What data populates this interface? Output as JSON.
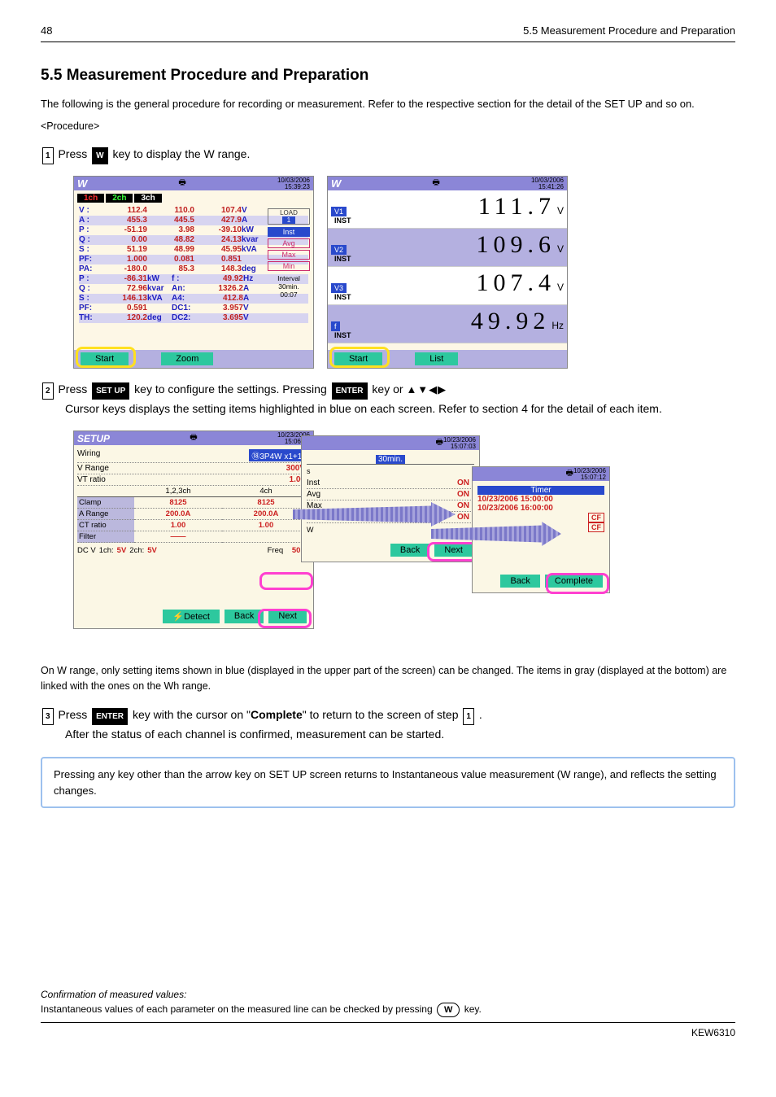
{
  "header": {
    "page": "48",
    "section": "5.5 Measurement Procedure and Preparation"
  },
  "sectionTitle": "5.5 Measurement Procedure and Preparation",
  "intro": "The following is the general procedure for recording or measurement. Refer to the respective section for the detail of the SET UP and so on.",
  "step1": {
    "num": "1",
    "pre": "Press",
    "key": "W",
    "post": "key to display the W range."
  },
  "screenshots": {
    "date1": "10/03/2006",
    "time1": "15:39:23",
    "date2": "10/03/2006",
    "time2": "15:41:26",
    "tabs": [
      "1ch",
      "2ch",
      "3ch"
    ],
    "rows": [
      {
        "lbl": "V :",
        "c1": "112.4",
        "c2": "110.0",
        "c3": "107.4",
        "un": "V"
      },
      {
        "lbl": "A :",
        "c1": "455.3",
        "c2": "445.5",
        "c3": "427.9",
        "un": "A"
      },
      {
        "lbl": "P :",
        "c1": "-51.19",
        "c2": "3.98",
        "c3": "-39.10",
        "un": "kW"
      },
      {
        "lbl": "Q :",
        "c1": "0.00",
        "c2": "48.82",
        "c3": "24.13",
        "un": "kvar"
      },
      {
        "lbl": "S :",
        "c1": "51.19",
        "c2": "48.99",
        "c3": "45.95",
        "un": "kVA"
      },
      {
        "lbl": "PF:",
        "c1": "1.000",
        "c2": "0.081",
        "c3": "0.851",
        "un": ""
      },
      {
        "lbl": "PA:",
        "c1": "-180.0",
        "c2": "85.3",
        "c3": "148.3",
        "un": "deg"
      }
    ],
    "sum": [
      {
        "a": "P :",
        "av": "-86.31",
        "au": "kW",
        "b": "f :",
        "bv": "49.92",
        "bu": "Hz"
      },
      {
        "a": "Q :",
        "av": "72.96",
        "au": "kvar",
        "b": "An:",
        "bv": "1326.2",
        "bu": "A"
      },
      {
        "a": "S :",
        "av": "146.13",
        "au": "kVA",
        "b": "A4:",
        "bv": "412.8",
        "bu": "A"
      },
      {
        "a": "PF:",
        "av": "0.591",
        "au": "",
        "b": "DC1:",
        "bv": "3.957",
        "bu": "V"
      },
      {
        "a": "TH:",
        "av": "120.2",
        "au": "deg",
        "b": "DC2:",
        "bv": "3.695",
        "bu": "V"
      }
    ],
    "loadTitle": "LOAD",
    "loadNum": "1",
    "rlabels": [
      "Inst",
      "Avg",
      "Max",
      "Min"
    ],
    "interval": "Interval",
    "intervalVal": "30min.",
    "counter": "00:07",
    "btnStart": "Start",
    "btnZoom": "Zoom",
    "btnList": "List",
    "zoomRows": [
      {
        "lbl": "V1",
        "sub": "INST",
        "val": "111.7",
        "unit": "V",
        "alt": false
      },
      {
        "lbl": "V2",
        "sub": "INST",
        "val": "109.6",
        "unit": "V",
        "alt": true
      },
      {
        "lbl": "V3",
        "sub": "INST",
        "val": "107.4",
        "unit": "V",
        "alt": false
      },
      {
        "lbl": "f",
        "sub": "INST",
        "val": "49.92",
        "unit": "Hz",
        "alt": true
      }
    ]
  },
  "step2": {
    "num": "2",
    "pre": "Press",
    "key": "SET UP",
    "mid": "key to configure the settings. Pressing",
    "key2": "ENTER",
    "post": "key or",
    "tail": "Cursor keys displays the setting items highlighted in blue on each screen. Refer to section 4 for the detail of each item."
  },
  "setup": {
    "title": "SETUP",
    "date": "10/23/2006",
    "time": "15:06:54",
    "date2": "10/23/2006",
    "time2": "15:07:03",
    "date3": "10/23/2006",
    "time3": "15:07:12",
    "wiring": {
      "lbl": "Wiring",
      "val": "⑱3P4W x1+1A"
    },
    "vrange": {
      "lbl": "V Range",
      "val": "300V"
    },
    "vtratio": {
      "lbl": "VT ratio",
      "val": "1.00"
    },
    "gridHead": [
      "",
      "1,2,3ch",
      "4ch"
    ],
    "gridRows": [
      {
        "l": "Clamp",
        "a": "8125",
        "b": "8125"
      },
      {
        "l": "A Range",
        "a": "200.0A",
        "b": "200.0A"
      },
      {
        "l": "CT ratio",
        "a": "1.00",
        "b": "1.00"
      },
      {
        "l": "Filter",
        "a": "——",
        "b": ""
      }
    ],
    "dcv": {
      "lbl": "DC V",
      "c1l": "1ch:",
      "c1v": "5V",
      "c2l": "2ch:",
      "c2v": "5V",
      "fl": "Freq",
      "fv": "50Hz"
    },
    "btnDetect": "⚡Detect",
    "btnBack": "Back",
    "btnNext": "Next",
    "btnComplete": "Complete",
    "s": "s",
    "interval": "30min.",
    "W": "W",
    "onrows": [
      {
        "l": "Inst",
        "v": "ON"
      },
      {
        "l": "Avg",
        "v": "ON"
      },
      {
        "l": "Max",
        "v": "ON"
      },
      {
        "l": "Min",
        "v": "ON"
      }
    ],
    "timer": "Timer",
    "tstart": "10/23/2006 15:00:00",
    "tend": "10/23/2006 16:00:00",
    "cf": "CF"
  },
  "wnote": "On W range, only setting items shown in blue (displayed in the upper part of the screen) can be changed. The items in gray (displayed at the bottom) are linked with the ones on the Wh range.",
  "step3": {
    "num": "3",
    "pre": "Press",
    "key": "ENTER",
    "mid": "key with the cursor on",
    "comp": "Complete",
    "step1ref": "1",
    "tail": " to return to the screen of step",
    "after": "After the status of each channel is confirmed, measurement can be started."
  },
  "caution": "Pressing any key other than the arrow key on SET UP screen returns to Instantaneous value measurement (W range), and reflects the setting changes.",
  "footer": {
    "line1": "Confirmation of measured values:",
    "line2": "Instantaneous values of each parameter on the measured line can be checked by pressing",
    "key": "W",
    "model": "KEW6310"
  }
}
